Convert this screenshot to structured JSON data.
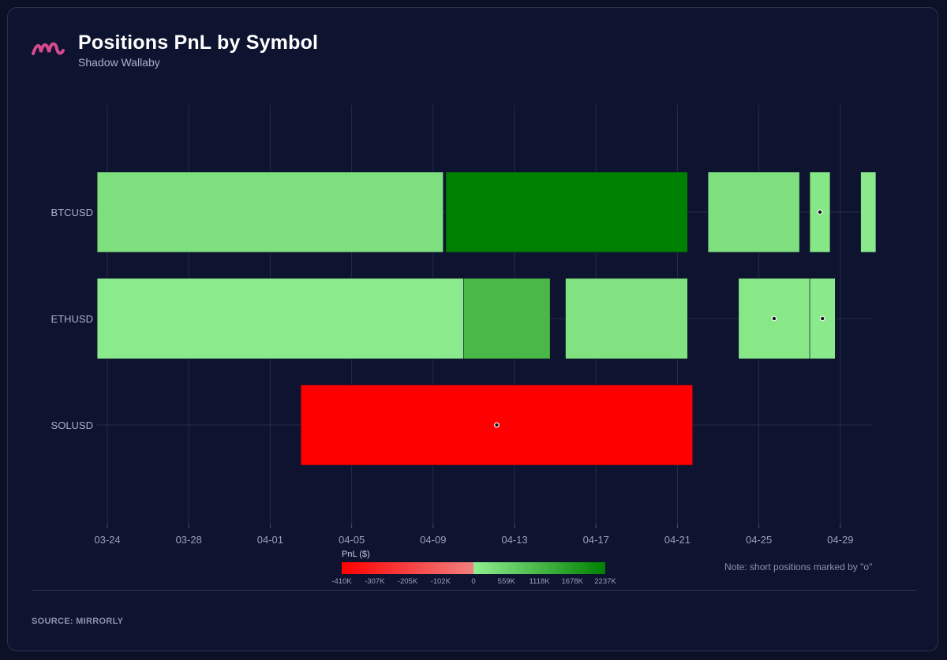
{
  "header": {
    "title": "Positions PnL by Symbol",
    "subtitle": "Shadow Wallaby"
  },
  "footer": {
    "source": "SOURCE: MIRRORLY",
    "note": "Note: short positions marked by \"o\""
  },
  "colors": {
    "background": "#0e1430",
    "logo": "#d64a8e",
    "positive_light": "#90ee90",
    "positive_dark": "#008000",
    "negative": "#ff0000"
  },
  "chart_data": {
    "type": "timeline",
    "x_axis": {
      "type": "date",
      "range": [
        "2024-03-23",
        "2024-05-01"
      ],
      "ticks": [
        "2024-03-24",
        "2024-03-28",
        "2024-04-01",
        "2024-04-05",
        "2024-04-09",
        "2024-04-13",
        "2024-04-17",
        "2024-04-21",
        "2024-04-25",
        "2024-04-29"
      ],
      "tick_labels": [
        "03-24",
        "03-28",
        "04-01",
        "04-05",
        "04-09",
        "04-13",
        "04-17",
        "04-21",
        "04-25",
        "04-29"
      ]
    },
    "categories": [
      "BTCUSD",
      "ETHUSD",
      "SOLUSD"
    ],
    "positions": [
      {
        "symbol": "BTCUSD",
        "start": "2024-03-23T12:00",
        "end": "2024-04-09T12:00",
        "pnl": 300000,
        "short": false
      },
      {
        "symbol": "BTCUSD",
        "start": "2024-04-09T15:00",
        "end": "2024-04-21T12:00",
        "pnl": 2237000,
        "short": false
      },
      {
        "symbol": "BTCUSD",
        "start": "2024-04-22T12:00",
        "end": "2024-04-27T00:00",
        "pnl": 300000,
        "short": false
      },
      {
        "symbol": "BTCUSD",
        "start": "2024-04-27T12:00",
        "end": "2024-04-28T12:00",
        "pnl": 150000,
        "short": true
      },
      {
        "symbol": "BTCUSD",
        "start": "2024-04-30T00:00",
        "end": "2024-04-30T18:00",
        "pnl": 100000,
        "short": false
      },
      {
        "symbol": "ETHUSD",
        "start": "2024-03-23T12:00",
        "end": "2024-04-10T12:00",
        "pnl": 80000,
        "short": false
      },
      {
        "symbol": "ETHUSD",
        "start": "2024-04-10T12:00",
        "end": "2024-04-14T18:00",
        "pnl": 1100000,
        "short": false
      },
      {
        "symbol": "ETHUSD",
        "start": "2024-04-15T12:00",
        "end": "2024-04-21T12:00",
        "pnl": 250000,
        "short": false
      },
      {
        "symbol": "ETHUSD",
        "start": "2024-04-24T00:00",
        "end": "2024-04-27T12:00",
        "pnl": 120000,
        "short": true
      },
      {
        "symbol": "ETHUSD",
        "start": "2024-04-27T12:00",
        "end": "2024-04-28T18:00",
        "pnl": 100000,
        "short": true
      },
      {
        "symbol": "SOLUSD",
        "start": "2024-04-02T12:00",
        "end": "2024-04-21T18:00",
        "pnl": -410000,
        "short": true
      }
    ],
    "colorbar": {
      "title": "PnL ($)",
      "min": -410000,
      "max": 2237000,
      "tick_labels": [
        "-410K",
        "-307K",
        "-205K",
        "-102K",
        "0",
        "559K",
        "1118K",
        "1678K",
        "2237K"
      ]
    },
    "grid": true,
    "legend": "colorbar-bottom"
  }
}
